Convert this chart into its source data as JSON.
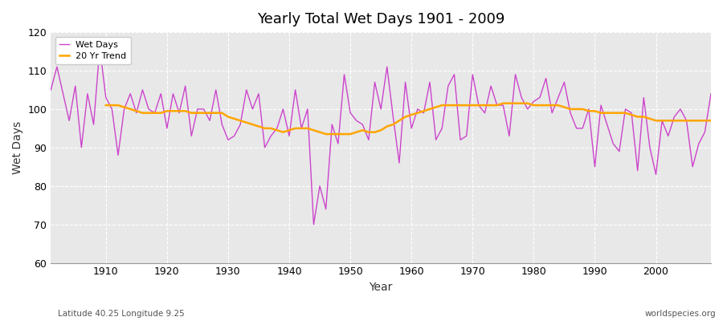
{
  "title": "Yearly Total Wet Days 1901 - 2009",
  "xlabel": "Year",
  "ylabel": "Wet Days",
  "ylim": [
    60,
    120
  ],
  "xlim": [
    1901,
    2009
  ],
  "yticks": [
    60,
    70,
    80,
    90,
    100,
    110,
    120
  ],
  "xticks": [
    1910,
    1920,
    1930,
    1940,
    1950,
    1960,
    1970,
    1980,
    1990,
    2000
  ],
  "fig_bg_color": "#ffffff",
  "plot_bg_color": "#e8e8e8",
  "wet_days_color": "#cc44cc",
  "trend_color": "#ffa500",
  "legend_wet": "Wet Days",
  "legend_trend": "20 Yr Trend",
  "annotation_lat_lon": "Latitude 40.25 Longitude 9.25",
  "annotation_source": "worldspecies.org",
  "wet_days": [
    105,
    111,
    104,
    97,
    106,
    90,
    104,
    96,
    116,
    103,
    100,
    88,
    100,
    104,
    99,
    105,
    100,
    99,
    104,
    95,
    104,
    99,
    106,
    93,
    100,
    100,
    97,
    105,
    96,
    92,
    93,
    96,
    105,
    100,
    104,
    90,
    93,
    95,
    100,
    93,
    105,
    95,
    100,
    70,
    80,
    74,
    96,
    91,
    109,
    99,
    97,
    96,
    92,
    107,
    100,
    111,
    98,
    86,
    107,
    95,
    100,
    99,
    107,
    92,
    95,
    106,
    109,
    92,
    93,
    109,
    101,
    99,
    106,
    101,
    101,
    93,
    109,
    103,
    100,
    102,
    103,
    108,
    99,
    103,
    107,
    99,
    95,
    95,
    100,
    85,
    101,
    96,
    91,
    89,
    100,
    99,
    84,
    103,
    90,
    83,
    97,
    93,
    98,
    100,
    97,
    85,
    91,
    94,
    104
  ],
  "trend_years": [
    1910,
    1911,
    1912,
    1913,
    1914,
    1915,
    1916,
    1917,
    1918,
    1919,
    1920,
    1921,
    1922,
    1923,
    1924,
    1925,
    1926,
    1927,
    1928,
    1929,
    1930,
    1931,
    1932,
    1933,
    1934,
    1935,
    1936,
    1937,
    1938,
    1939,
    1940,
    1941,
    1942,
    1943,
    1944,
    1945,
    1946,
    1947,
    1948,
    1949,
    1950,
    1951,
    1952,
    1953,
    1954,
    1955,
    1956,
    1957,
    1958,
    1959,
    1960,
    1961,
    1962,
    1963,
    1964,
    1965,
    1966,
    1967,
    1968,
    1969,
    1970,
    1971,
    1972,
    1973,
    1974,
    1975,
    1976,
    1977,
    1978,
    1979,
    1980,
    1981,
    1982,
    1983,
    1984,
    1985,
    1986,
    1987,
    1988,
    1989,
    1990,
    1991,
    1992,
    1993,
    1994,
    1995,
    1996,
    1997,
    1998,
    1999,
    2000,
    2001,
    2002,
    2003,
    2004,
    2005,
    2006,
    2007,
    2008,
    2009
  ],
  "trend_values": [
    101,
    101,
    101,
    100.5,
    100,
    99.5,
    99,
    99,
    99,
    99,
    99.5,
    99.5,
    99.5,
    99.5,
    99,
    99,
    99,
    99,
    99,
    99,
    98,
    97.5,
    97,
    96.5,
    96,
    95.5,
    95,
    95,
    94.5,
    94,
    94.5,
    95,
    95,
    95,
    94.5,
    94,
    93.5,
    93.5,
    93.5,
    93.5,
    93.5,
    94,
    94.5,
    94,
    94,
    94.5,
    95.5,
    96,
    97,
    98,
    98.5,
    99,
    99.5,
    100,
    100.5,
    101,
    101,
    101,
    101,
    101,
    101,
    101,
    101,
    101,
    101,
    101.5,
    101.5,
    101.5,
    101.5,
    101.5,
    101,
    101,
    101,
    101,
    101,
    100.5,
    100,
    100,
    100,
    99.5,
    99.5,
    99,
    99,
    99,
    99,
    99,
    98.5,
    98,
    98,
    97.5,
    97,
    97,
    97,
    97,
    97,
    97,
    97,
    97,
    97,
    97
  ]
}
